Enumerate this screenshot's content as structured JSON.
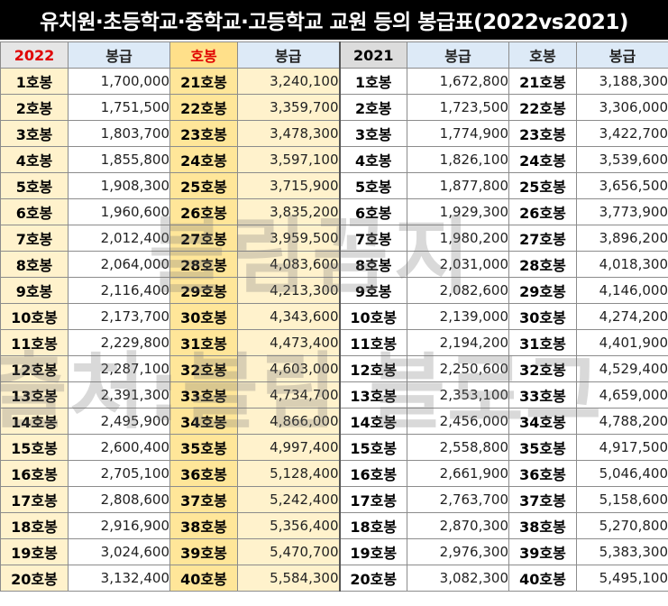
{
  "title": "유치원·초등학교·중학교·고등학교 교원 등의 봉급표(2022vs2021)",
  "header": [
    "2022",
    "봉급",
    "호봉",
    "봉급",
    "2021",
    "봉급",
    "호봉",
    "봉급"
  ],
  "watermark": {
    "line1": "블림꼼지",
    "line2": "출처:블림 블로그"
  },
  "rows": [
    [
      "1호봉",
      "1,700,000",
      "21호봉",
      "3,240,100",
      "1호봉",
      "1,672,800",
      "21호봉",
      "3,188,300"
    ],
    [
      "2호봉",
      "1,751,500",
      "22호봉",
      "3,359,700",
      "2호봉",
      "1,723,500",
      "22호봉",
      "3,306,000"
    ],
    [
      "3호봉",
      "1,803,700",
      "23호봉",
      "3,478,300",
      "3호봉",
      "1,774,900",
      "23호봉",
      "3,422,700"
    ],
    [
      "4호봉",
      "1,855,800",
      "24호봉",
      "3,597,100",
      "4호봉",
      "1,826,100",
      "24호봉",
      "3,539,600"
    ],
    [
      "5호봉",
      "1,908,300",
      "25호봉",
      "3,715,900",
      "5호봉",
      "1,877,800",
      "25호봉",
      "3,656,500"
    ],
    [
      "6호봉",
      "1,960,600",
      "26호봉",
      "3,835,200",
      "6호봉",
      "1,929,300",
      "26호봉",
      "3,773,900"
    ],
    [
      "7호봉",
      "2,012,400",
      "27호봉",
      "3,959,500",
      "7호봉",
      "1,980,200",
      "27호봉",
      "3,896,200"
    ],
    [
      "8호봉",
      "2,064,000",
      "28호봉",
      "4,083,600",
      "8호봉",
      "2,031,000",
      "28호봉",
      "4,018,300"
    ],
    [
      "9호봉",
      "2,116,400",
      "29호봉",
      "4,213,300",
      "9호봉",
      "2,082,600",
      "29호봉",
      "4,146,000"
    ],
    [
      "10호봉",
      "2,173,700",
      "30호봉",
      "4,343,600",
      "10호봉",
      "2,139,000",
      "30호봉",
      "4,274,200"
    ],
    [
      "11호봉",
      "2,229,800",
      "31호봉",
      "4,473,400",
      "11호봉",
      "2,194,200",
      "31호봉",
      "4,401,900"
    ],
    [
      "12호봉",
      "2,287,100",
      "32호봉",
      "4,603,000",
      "12호봉",
      "2,250,600",
      "32호봉",
      "4,529,400"
    ],
    [
      "13호봉",
      "2,391,300",
      "33호봉",
      "4,734,700",
      "13호봉",
      "2,353,100",
      "33호봉",
      "4,659,000"
    ],
    [
      "14호봉",
      "2,495,900",
      "34호봉",
      "4,866,000",
      "14호봉",
      "2,456,000",
      "34호봉",
      "4,788,200"
    ],
    [
      "15호봉",
      "2,600,400",
      "35호봉",
      "4,997,400",
      "15호봉",
      "2,558,800",
      "35호봉",
      "4,917,500"
    ],
    [
      "16호봉",
      "2,705,100",
      "36호봉",
      "5,128,400",
      "16호봉",
      "2,661,900",
      "36호봉",
      "5,046,400"
    ],
    [
      "17호봉",
      "2,808,600",
      "37호봉",
      "5,242,400",
      "17호봉",
      "2,763,700",
      "37호봉",
      "5,158,600"
    ],
    [
      "18호봉",
      "2,916,900",
      "38호봉",
      "5,356,400",
      "18호봉",
      "2,870,300",
      "38호봉",
      "5,270,800"
    ],
    [
      "19호봉",
      "3,024,600",
      "39호봉",
      "5,470,700",
      "19호봉",
      "2,976,300",
      "39호봉",
      "5,383,300"
    ],
    [
      "20호봉",
      "3,132,400",
      "40호봉",
      "5,584,300",
      "20호봉",
      "3,082,300",
      "40호봉",
      "5,495,100"
    ]
  ]
}
